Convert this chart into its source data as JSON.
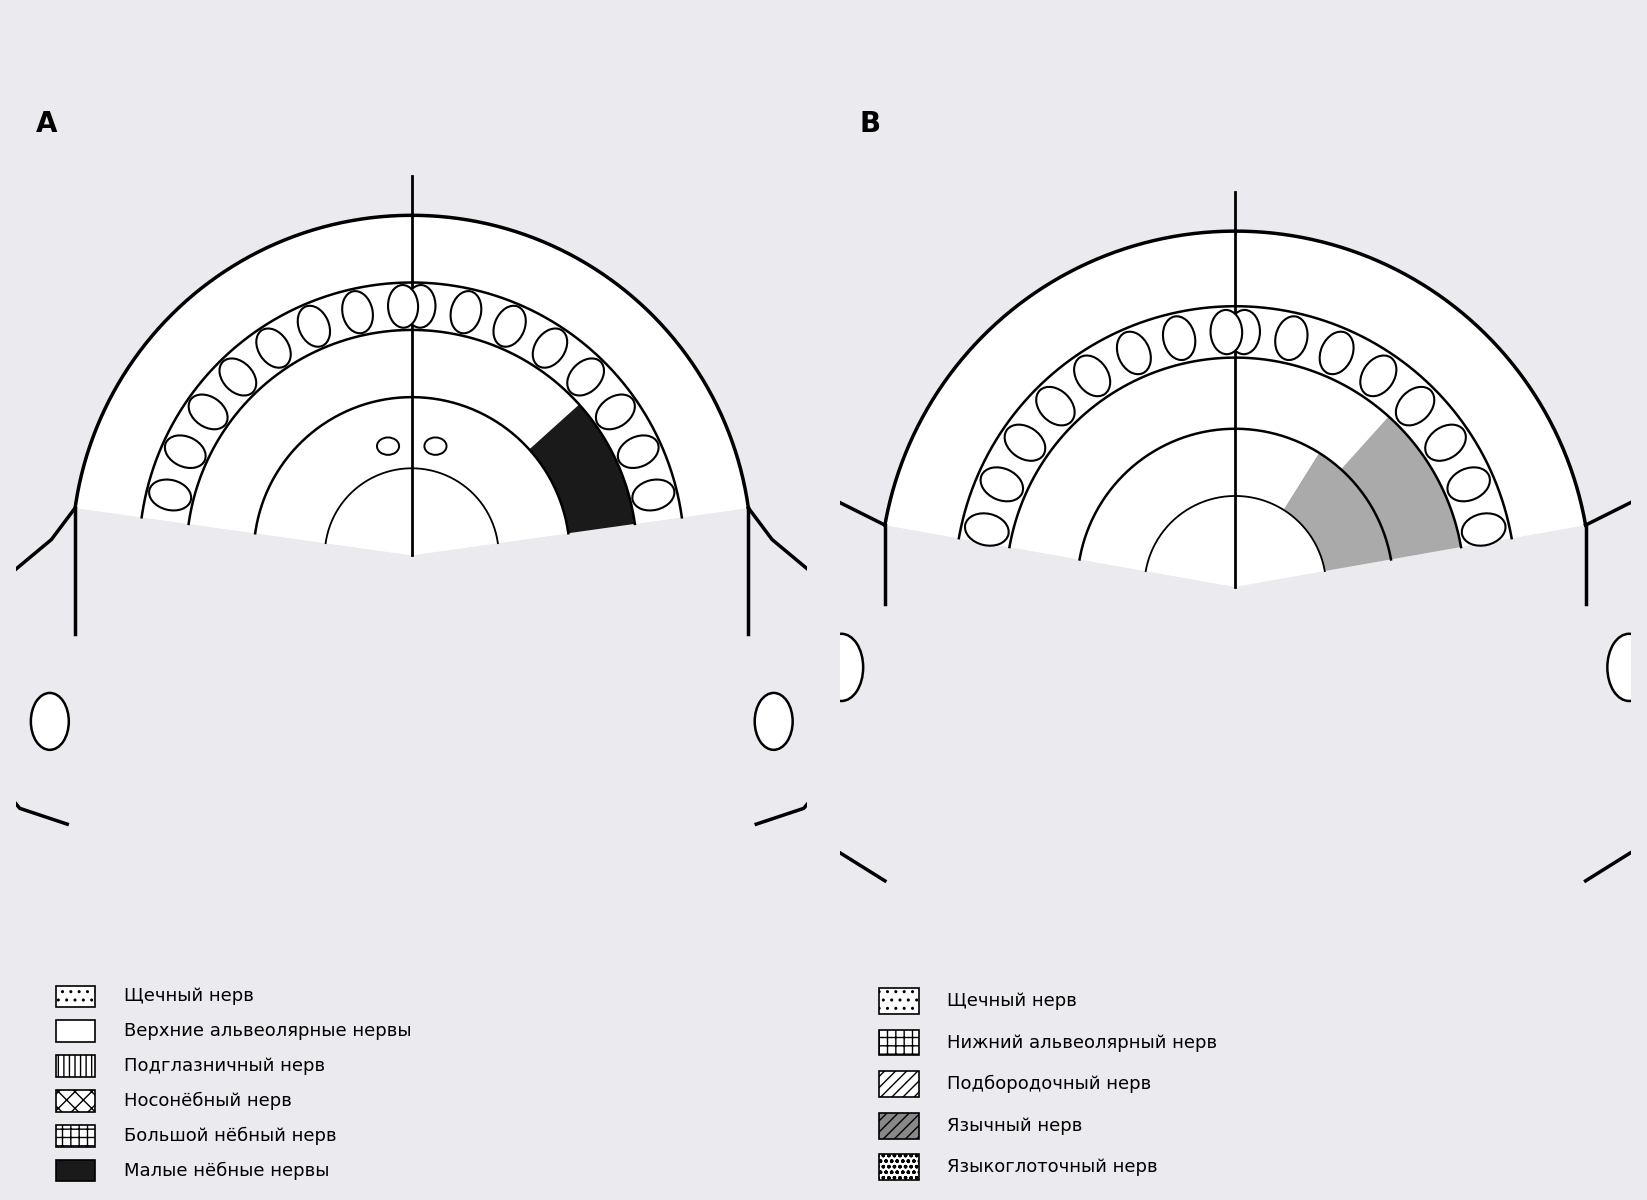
{
  "bg": "#eaeaef",
  "label_A": "А",
  "label_B": "В",
  "legend_A": [
    {
      "label": "Щечный нерв",
      "hatch": "..",
      "fc": "white",
      "ec": "black"
    },
    {
      "label": "Верхние альвеолярные нервы",
      "hatch": "===",
      "fc": "white",
      "ec": "black"
    },
    {
      "label": "Подглазничный нерв",
      "hatch": "|||",
      "fc": "white",
      "ec": "black"
    },
    {
      "label": "Носонёбный нерв",
      "hatch": "xx",
      "fc": "white",
      "ec": "black"
    },
    {
      "label": "Большой нёбный нерв",
      "hatch": "++",
      "fc": "white",
      "ec": "black"
    },
    {
      "label": "Малые нёбные нервы",
      "hatch": "",
      "fc": "#1a1a1a",
      "ec": "black"
    }
  ],
  "legend_B": [
    {
      "label": "Щечный нерв",
      "hatch": "..",
      "fc": "white",
      "ec": "black"
    },
    {
      "label": "Нижний альвеолярный нерв",
      "hatch": "++",
      "fc": "white",
      "ec": "black"
    },
    {
      "label": "Подбородочный нерв",
      "hatch": "///",
      "fc": "white",
      "ec": "black"
    },
    {
      "label": "Язычный нерв",
      "hatch": "///",
      "fc": "#888888",
      "ec": "black"
    },
    {
      "label": "Языкоглоточный нерв",
      "hatch": "ooo",
      "fc": "white",
      "ec": "black"
    }
  ],
  "lw_outer": 2.5,
  "lw_inner": 1.8,
  "font_label": 20,
  "font_legend": 13
}
